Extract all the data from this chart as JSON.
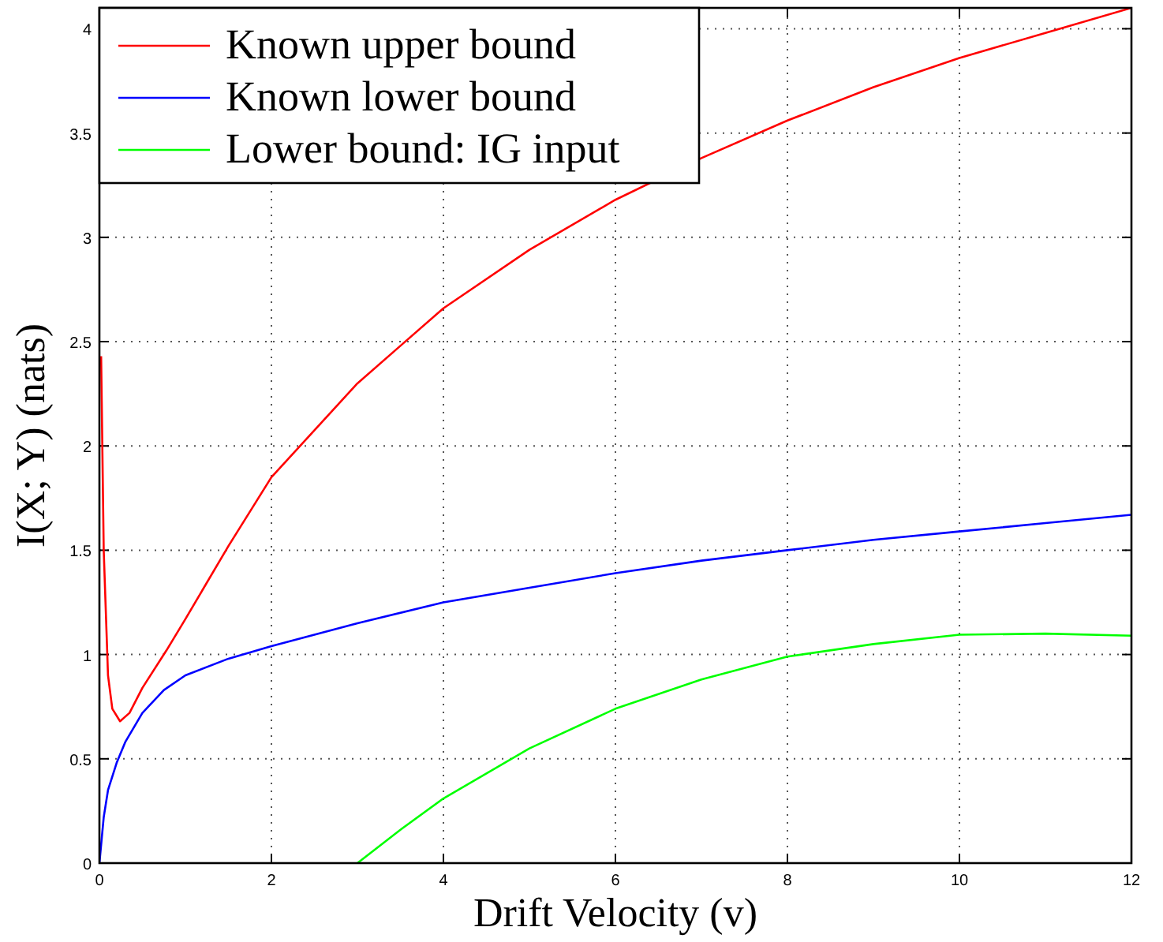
{
  "chart_data": {
    "type": "line",
    "xlabel": "Drift Velocity (v)",
    "ylabel": "I(X; Y) (nats)",
    "xlim": [
      0,
      12
    ],
    "ylim": [
      0,
      4.1
    ],
    "xticks": [
      0,
      2,
      4,
      6,
      8,
      10,
      12
    ],
    "yticks": [
      0,
      0.5,
      1,
      1.5,
      2,
      2.5,
      3,
      3.5,
      4
    ],
    "grid": true,
    "legend": "top left",
    "line_style": "solid",
    "series": [
      {
        "name": "Known upper bound",
        "color": "#ff0000",
        "x": [
          0.02,
          0.05,
          0.1,
          0.15,
          0.24,
          0.35,
          0.5,
          0.78,
          1,
          1.5,
          2,
          3,
          4,
          5,
          6,
          7,
          8,
          9,
          10,
          11,
          12
        ],
        "values": [
          2.43,
          1.5,
          0.9,
          0.74,
          0.68,
          0.72,
          0.84,
          1.02,
          1.17,
          1.52,
          1.85,
          2.3,
          2.66,
          2.94,
          3.18,
          3.38,
          3.56,
          3.72,
          3.86,
          3.98,
          4.1
        ]
      },
      {
        "name": "Known lower bound",
        "color": "#0000ff",
        "x": [
          0,
          0.05,
          0.1,
          0.2,
          0.3,
          0.5,
          0.75,
          1,
          1.5,
          2,
          3,
          4,
          5,
          6,
          7,
          8,
          9,
          10,
          11,
          12
        ],
        "values": [
          0,
          0.22,
          0.35,
          0.48,
          0.58,
          0.72,
          0.83,
          0.9,
          0.98,
          1.04,
          1.15,
          1.25,
          1.32,
          1.39,
          1.45,
          1.5,
          1.55,
          1.59,
          1.63,
          1.67
        ]
      },
      {
        "name": "Lower bound: IG input",
        "color": "#00ff00",
        "x": [
          3,
          3.5,
          4,
          5,
          6,
          7,
          8,
          9,
          10,
          11,
          12
        ],
        "values": [
          0,
          0.16,
          0.31,
          0.55,
          0.74,
          0.88,
          0.99,
          1.05,
          1.095,
          1.1,
          1.09
        ]
      }
    ]
  }
}
